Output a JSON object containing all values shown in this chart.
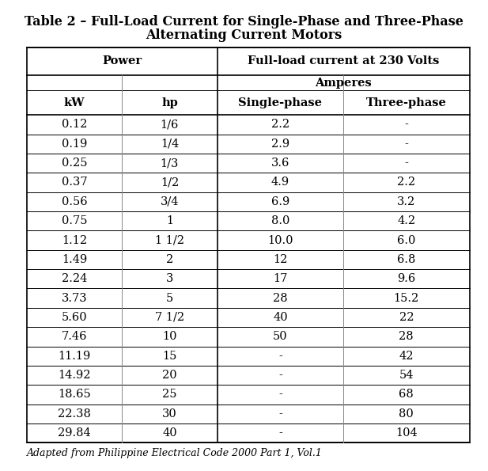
{
  "title_line1": "Table 2 – Full-Load Current for Single-Phase and Three-Phase",
  "title_line2": "Alternating Current Motors",
  "header_row1_col1": "Power",
  "header_row1_col2": "Full-load current at 230 Volts\nAmperes",
  "header_row2": [
    "kW",
    "hp",
    "Single-phase",
    "Three-phase"
  ],
  "rows": [
    [
      "0.12",
      "1/6",
      "2.2",
      "-"
    ],
    [
      "0.19",
      "1/4",
      "2.9",
      "-"
    ],
    [
      "0.25",
      "1/3",
      "3.6",
      "-"
    ],
    [
      "0.37",
      "1/2",
      "4.9",
      "2.2"
    ],
    [
      "0.56",
      "3/4",
      "6.9",
      "3.2"
    ],
    [
      "0.75",
      "1",
      "8.0",
      "4.2"
    ],
    [
      "1.12",
      "1 1/2",
      "10.0",
      "6.0"
    ],
    [
      "1.49",
      "2",
      "12",
      "6.8"
    ],
    [
      "2.24",
      "3",
      "17",
      "9.6"
    ],
    [
      "3.73",
      "5",
      "28",
      "15.2"
    ],
    [
      "5.60",
      "7 1/2",
      "40",
      "22"
    ],
    [
      "7.46",
      "10",
      "50",
      "28"
    ],
    [
      "11.19",
      "15",
      "-",
      "42"
    ],
    [
      "14.92",
      "20",
      "-",
      "54"
    ],
    [
      "18.65",
      "25",
      "-",
      "68"
    ],
    [
      "22.38",
      "30",
      "-",
      "80"
    ],
    [
      "29.84",
      "40",
      "-",
      "104"
    ]
  ],
  "footnote": "Adapted from Philippine Electrical Code 2000 Part 1, Vol.1",
  "bg_color": "#ffffff",
  "line_color": "#999999",
  "header_bg": "#ffffff",
  "text_color": "#000000",
  "title_fontsize": 11.5,
  "header_fontsize": 10.5,
  "cell_fontsize": 10.5,
  "footnote_fontsize": 9
}
